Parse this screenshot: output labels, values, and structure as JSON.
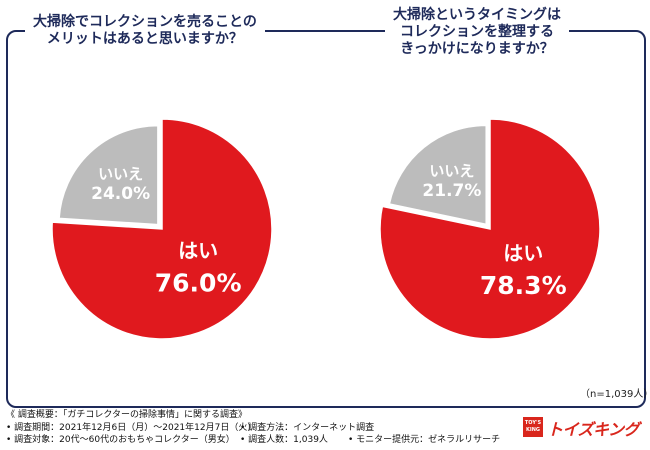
{
  "chart_data": [
    {
      "type": "pie",
      "title": [
        "大掃除でコレクションを売ることの",
        "メリットはあると思いますか？"
      ],
      "slices": [
        {
          "label": "はい",
          "value": 76.0,
          "display": "76.0%",
          "color": "#e0191e"
        },
        {
          "label": "いいえ",
          "value": 24.0,
          "display": "24.0%",
          "color": "#bcbcbc"
        }
      ]
    },
    {
      "type": "pie",
      "title": [
        "大掃除というタイミングは",
        "コレクションを整理する",
        "きっかけになりますか？"
      ],
      "slices": [
        {
          "label": "はい",
          "value": 78.3,
          "display": "78.3%",
          "color": "#e0191e"
        },
        {
          "label": "いいえ",
          "value": 21.7,
          "display": "21.7%",
          "color": "#bcbcbc"
        }
      ]
    }
  ],
  "sample_size": "（n=1,039人）",
  "footer": {
    "heading": "《 調査概要：「ガチコレクターの掃除事情」に関する調査》",
    "period": "• 調査期間：2021年12月6日（月）～2021年12月7日（火）",
    "target": "• 調査対象：20代～60代のおもちゃコレクター（男女）",
    "method": "• 調査方法：インターネット調査",
    "count": "• 調査人数：1,039人",
    "provider": "• モニター提供元：ゼネラルリサーチ"
  },
  "logo": {
    "badge_line1": "TOY'S",
    "badge_line2": "KING",
    "text": "トイズキング"
  },
  "colors": {
    "navy": "#1e2a5a",
    "red": "#e0191e",
    "gray": "#bcbcbc"
  }
}
